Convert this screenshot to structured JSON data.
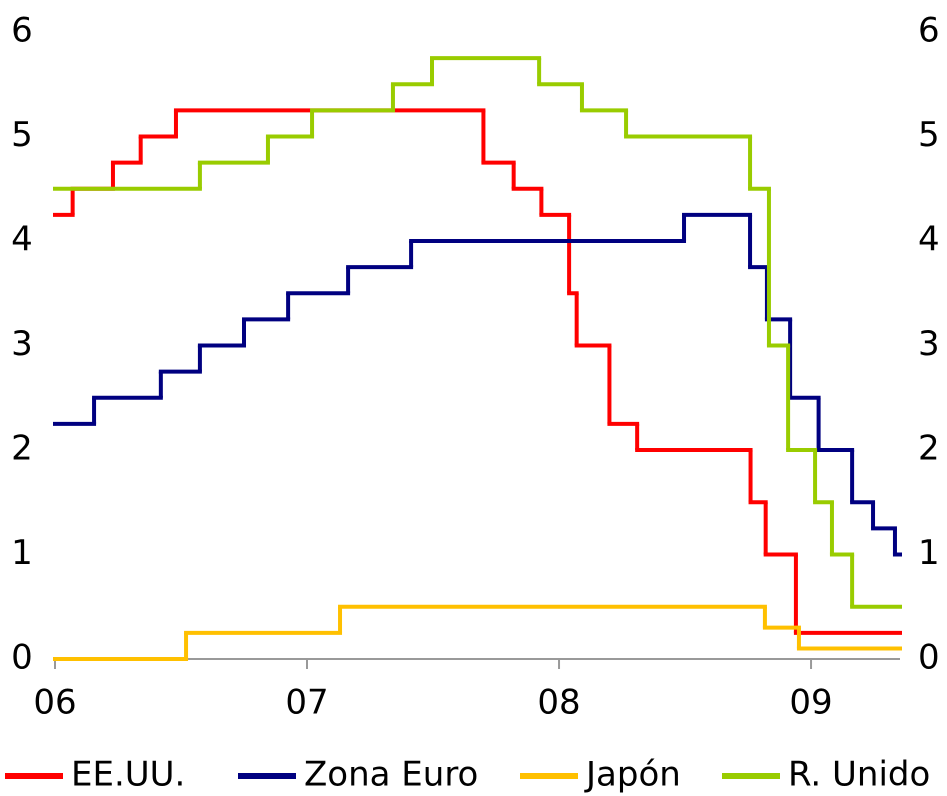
{
  "chart_data": {
    "type": "step-line",
    "xlim": [
      2006,
      2009.353
    ],
    "xticks": [
      {
        "value": 2006,
        "label": "06"
      },
      {
        "value": 2007,
        "label": "07"
      },
      {
        "value": 2008,
        "label": "08"
      },
      {
        "value": 2009,
        "label": "09"
      }
    ],
    "ylim": [
      0,
      6
    ],
    "yticks": [
      0,
      1,
      2,
      3,
      4,
      5,
      6
    ],
    "y2lim": [
      0,
      6
    ],
    "y2ticks": [
      0,
      1,
      2,
      3,
      4,
      5,
      6
    ],
    "grid": false,
    "legend": "bottom",
    "series": [
      {
        "name": "EE.UU.",
        "color": "#ff0000",
        "x": [
          2006,
          2006.07,
          2006.23,
          2006.34,
          2006.48,
          2007.7,
          2007.82,
          2007.93,
          2008.04,
          2008.07,
          2008.2,
          2008.31,
          2008.76,
          2008.82,
          2008.94,
          2009.353
        ],
        "values": [
          4.25,
          4.5,
          4.75,
          5,
          5.25,
          4.75,
          4.5,
          4.25,
          3.5,
          3,
          2.25,
          2,
          1.5,
          1,
          0.25,
          0.25
        ]
      },
      {
        "name": "Zona Euro",
        "color": "#000080",
        "x": [
          2006,
          2006.155,
          2006.42,
          2006.575,
          2006.75,
          2006.925,
          2007.163,
          2007.413,
          2008.496,
          2008.758,
          2008.825,
          2008.917,
          2009.03,
          2009.163,
          2009.246,
          2009.333,
          2009.353
        ],
        "values": [
          2.25,
          2.5,
          2.75,
          3,
          3.25,
          3.5,
          3.75,
          4,
          4.25,
          3.75,
          3.25,
          2.5,
          2,
          1.5,
          1.25,
          1,
          1
        ]
      },
      {
        "name": "Japón",
        "color": "#ffc000",
        "x": [
          2006,
          2006.52,
          2007.131,
          2008.817,
          2008.952,
          2009.353
        ],
        "values": [
          0,
          0.25,
          0.5,
          0.3,
          0.1,
          0.1
        ]
      },
      {
        "name": "R. Unido",
        "color": "#99cc00",
        "x": [
          2006,
          2006.575,
          2006.845,
          2007.02,
          2007.341,
          2007.496,
          2007.921,
          2008.091,
          2008.266,
          2008.758,
          2008.833,
          2008.909,
          2009.016,
          2009.083,
          2009.163,
          2009.353
        ],
        "values": [
          4.5,
          4.75,
          5,
          5.25,
          5.5,
          5.75,
          5.5,
          5.25,
          5,
          4.5,
          3,
          2,
          1.5,
          1,
          0.5,
          0.5
        ]
      }
    ]
  }
}
